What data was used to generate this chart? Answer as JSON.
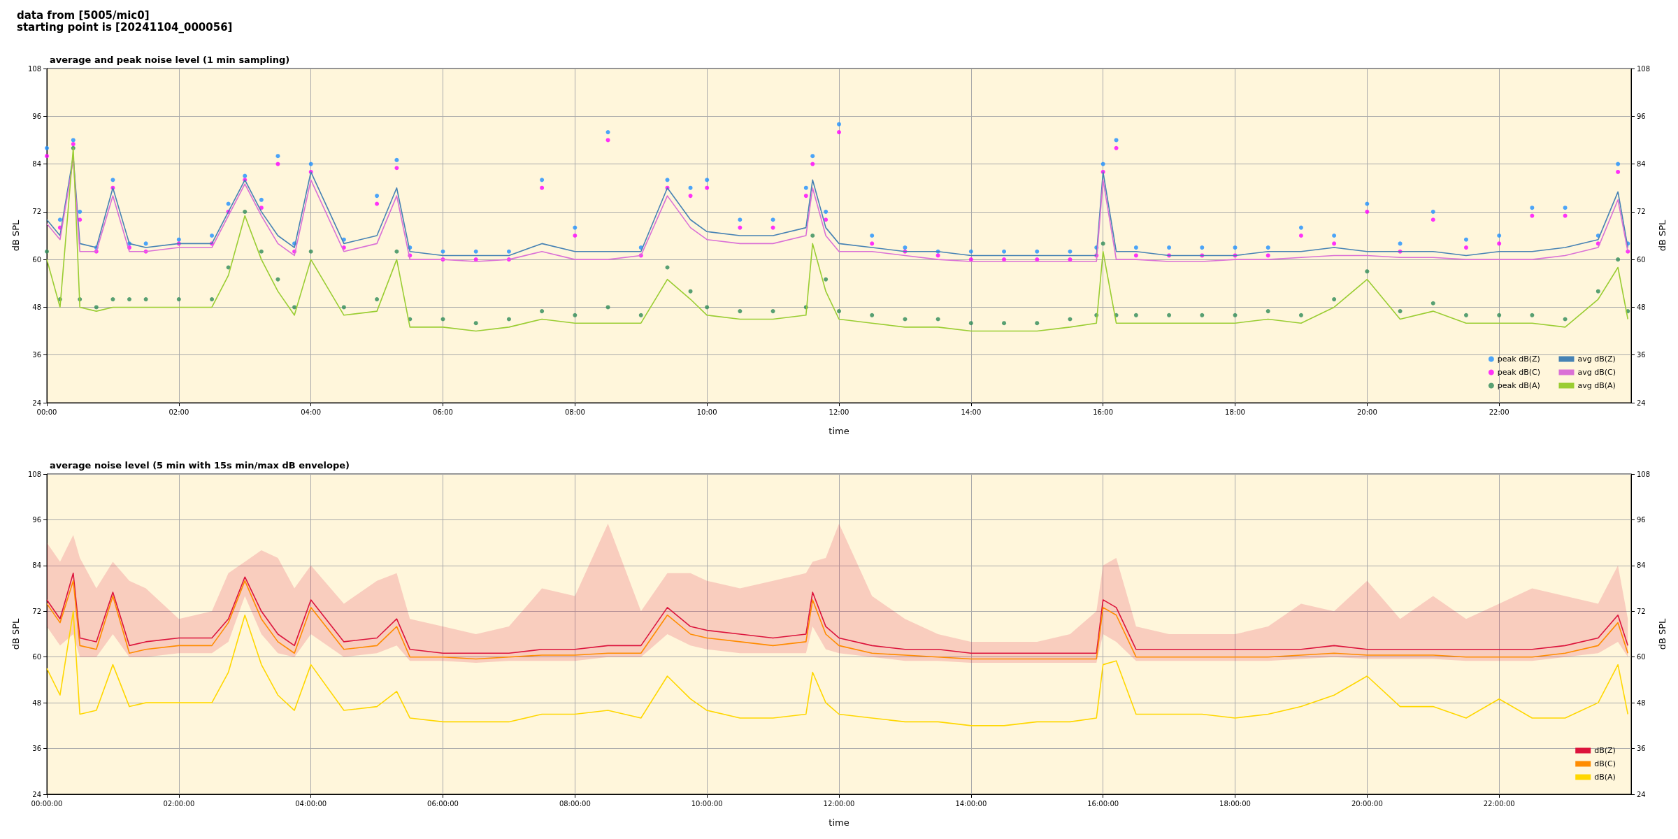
{
  "chart_data": [
    {
      "type": "line",
      "title": "average and peak noise level (1 min sampling)",
      "xlabel": "time",
      "ylabel": "dB SPL",
      "y2label": "dB SPL",
      "annotations": [
        "data from [5005/mic0]",
        "starting point is [20241104_000056]"
      ],
      "x": [
        0,
        0.2,
        0.4,
        0.5,
        0.75,
        1,
        1.25,
        1.5,
        2,
        2.5,
        2.75,
        3,
        3.25,
        3.5,
        3.75,
        4,
        4.5,
        5,
        5.3,
        5.5,
        6,
        6.5,
        7,
        7.5,
        8,
        8.5,
        9,
        9.4,
        9.75,
        10,
        10.5,
        11,
        11.5,
        11.6,
        11.8,
        12,
        12.5,
        13,
        13.5,
        14,
        14.5,
        15,
        15.5,
        15.9,
        16,
        16.2,
        16.5,
        17,
        17.5,
        18,
        18.5,
        19,
        19.5,
        20,
        20.5,
        21,
        21.5,
        22,
        22.5,
        23,
        23.5,
        23.8,
        23.95
      ],
      "xlim": [
        0,
        24
      ],
      "xticks": [
        {
          "value": 0,
          "label": "00:00"
        },
        {
          "value": 2,
          "label": "02:00"
        },
        {
          "value": 4,
          "label": "04:00"
        },
        {
          "value": 6,
          "label": "06:00"
        },
        {
          "value": 8,
          "label": "08:00"
        },
        {
          "value": 10,
          "label": "10:00"
        },
        {
          "value": 12,
          "label": "12:00"
        },
        {
          "value": 14,
          "label": "14:00"
        },
        {
          "value": 16,
          "label": "16:00"
        },
        {
          "value": 18,
          "label": "18:00"
        },
        {
          "value": 20,
          "label": "20:00"
        },
        {
          "value": 22,
          "label": "22:00"
        }
      ],
      "ylim": [
        24,
        108
      ],
      "yticks": [
        24,
        36,
        48,
        60,
        72,
        84,
        96,
        108
      ],
      "y2lim": [
        24,
        108
      ],
      "y2ticks": [
        24,
        36,
        48,
        60,
        72,
        84,
        96,
        108
      ],
      "grid": true,
      "legend": "bottom right",
      "series": [
        {
          "name": "peak dB(Z)",
          "type": "scatter",
          "marker": "circle",
          "color": "#1e90ff",
          "values": [
            88,
            70,
            90,
            72,
            63,
            80,
            64,
            64,
            65,
            66,
            74,
            81,
            75,
            86,
            64,
            84,
            65,
            76,
            85,
            63,
            62,
            62,
            62,
            80,
            68,
            92,
            63,
            80,
            78,
            80,
            70,
            70,
            78,
            86,
            72,
            94,
            66,
            63,
            62,
            62,
            62,
            62,
            62,
            63,
            84,
            90,
            63,
            63,
            63,
            63,
            63,
            68,
            66,
            74,
            64,
            72,
            65,
            66,
            73,
            73,
            66,
            84,
            64
          ]
        },
        {
          "name": "peak dB(C)",
          "type": "scatter",
          "marker": "circle",
          "color": "#ff00ff",
          "values": [
            86,
            68,
            89,
            70,
            62,
            78,
            63,
            62,
            64,
            64,
            72,
            80,
            73,
            84,
            62,
            82,
            63,
            74,
            83,
            61,
            60,
            60,
            60,
            78,
            66,
            90,
            61,
            78,
            76,
            78,
            68,
            68,
            76,
            84,
            70,
            92,
            64,
            62,
            61,
            60,
            60,
            60,
            60,
            61,
            82,
            88,
            61,
            61,
            61,
            61,
            61,
            66,
            64,
            72,
            62,
            70,
            63,
            64,
            71,
            71,
            64,
            82,
            62
          ]
        },
        {
          "name": "peak dB(A)",
          "type": "scatter",
          "marker": "circle",
          "color": "#2e8b57",
          "values": [
            62,
            50,
            88,
            50,
            48,
            50,
            50,
            50,
            50,
            50,
            58,
            72,
            62,
            55,
            48,
            62,
            48,
            50,
            62,
            45,
            45,
            44,
            45,
            47,
            46,
            48,
            46,
            58,
            52,
            48,
            47,
            47,
            48,
            66,
            55,
            47,
            46,
            45,
            45,
            44,
            44,
            44,
            45,
            46,
            64,
            46,
            46,
            46,
            46,
            46,
            47,
            46,
            50,
            57,
            47,
            49,
            46,
            46,
            46,
            45,
            52,
            60,
            47
          ]
        },
        {
          "name": "avg dB(Z)",
          "color": "#4682b4",
          "values": [
            70,
            66,
            86,
            64,
            63,
            78,
            64,
            63,
            64,
            64,
            72,
            80,
            72,
            66,
            63,
            82,
            64,
            66,
            78,
            62,
            61,
            61,
            61,
            64,
            62,
            62,
            62,
            78,
            70,
            67,
            66,
            66,
            68,
            80,
            68,
            64,
            63,
            62,
            62,
            61,
            61,
            61,
            61,
            61,
            82,
            62,
            62,
            61,
            61,
            61,
            62,
            62,
            63,
            62,
            62,
            62,
            61,
            62,
            62,
            63,
            65,
            77,
            63
          ]
        },
        {
          "name": "avg dB(C)",
          "color": "#da70d6",
          "values": [
            69,
            65,
            85,
            62,
            62,
            76,
            62,
            62,
            63,
            63,
            71,
            79,
            71,
            64,
            61,
            80,
            62,
            64,
            76,
            60,
            60,
            59.5,
            60,
            62,
            60,
            60,
            61,
            76,
            68,
            65,
            64,
            64,
            66,
            78,
            66,
            62,
            62,
            61,
            60,
            59.5,
            59.5,
            59.5,
            59.5,
            59.5,
            80,
            60,
            60,
            59.5,
            59.5,
            60,
            60,
            60.5,
            61,
            61,
            60.5,
            60.5,
            60,
            60,
            60,
            61,
            63,
            75,
            62
          ]
        },
        {
          "name": "avg dB(A)",
          "color": "#9acd32",
          "values": [
            60,
            48,
            88,
            48,
            47,
            48,
            48,
            48,
            48,
            48,
            56,
            71,
            60,
            52,
            46,
            60,
            46,
            47,
            60,
            43,
            43,
            42,
            43,
            45,
            44,
            44,
            44,
            55,
            50,
            46,
            45,
            45,
            46,
            64,
            52,
            45,
            44,
            43,
            43,
            42,
            42,
            42,
            43,
            44,
            62,
            44,
            44,
            44,
            44,
            44,
            45,
            44,
            48,
            55,
            45,
            47,
            44,
            44,
            44,
            43,
            50,
            58,
            45
          ]
        }
      ]
    },
    {
      "type": "line",
      "title": "average noise level (5 min with 15s min/max dB envelope)",
      "xlabel": "time",
      "ylabel": "dB SPL",
      "y2label": "dB SPL",
      "x": [
        0,
        0.2,
        0.4,
        0.5,
        0.75,
        1,
        1.25,
        1.5,
        2,
        2.5,
        2.75,
        3,
        3.25,
        3.5,
        3.75,
        4,
        4.5,
        5,
        5.3,
        5.5,
        6,
        6.5,
        7,
        7.5,
        8,
        8.5,
        9,
        9.4,
        9.75,
        10,
        10.5,
        11,
        11.5,
        11.6,
        11.8,
        12,
        12.5,
        13,
        13.5,
        14,
        14.5,
        15,
        15.5,
        15.9,
        16,
        16.2,
        16.5,
        17,
        17.5,
        18,
        18.5,
        19,
        19.5,
        20,
        20.5,
        21,
        21.5,
        22,
        22.5,
        23,
        23.5,
        23.8,
        23.95
      ],
      "xlim": [
        0,
        24
      ],
      "xticks": [
        {
          "value": 0,
          "label": "00:00:00"
        },
        {
          "value": 2,
          "label": "02:00:00"
        },
        {
          "value": 4,
          "label": "04:00:00"
        },
        {
          "value": 6,
          "label": "06:00:00"
        },
        {
          "value": 8,
          "label": "08:00:00"
        },
        {
          "value": 10,
          "label": "10:00:00"
        },
        {
          "value": 12,
          "label": "12:00:00"
        },
        {
          "value": 14,
          "label": "14:00:00"
        },
        {
          "value": 16,
          "label": "16:00:00"
        },
        {
          "value": 18,
          "label": "18:00:00"
        },
        {
          "value": 20,
          "label": "20:00:00"
        },
        {
          "value": 22,
          "label": "22:00:00"
        }
      ],
      "ylim": [
        24,
        108
      ],
      "yticks": [
        24,
        36,
        48,
        60,
        72,
        84,
        96,
        108
      ],
      "y2lim": [
        24,
        108
      ],
      "y2ticks": [
        24,
        36,
        48,
        60,
        72,
        84,
        96,
        108
      ],
      "grid": true,
      "legend": "bottom right",
      "series": [
        {
          "name": "dB(Z)",
          "color": "#dc143c",
          "values": [
            75,
            70,
            82,
            65,
            64,
            77,
            63,
            64,
            65,
            65,
            70,
            81,
            72,
            66,
            63,
            75,
            64,
            65,
            70,
            62,
            61,
            61,
            61,
            62,
            62,
            63,
            63,
            73,
            68,
            67,
            66,
            65,
            66,
            77,
            68,
            65,
            63,
            62,
            62,
            61,
            61,
            61,
            61,
            61,
            75,
            73,
            62,
            62,
            62,
            62,
            62,
            62,
            63,
            62,
            62,
            62,
            62,
            62,
            62,
            63,
            65,
            71,
            63
          ],
          "lower": [
            68,
            63,
            66,
            60,
            60,
            66,
            60,
            60,
            61,
            61,
            64,
            76,
            66,
            61,
            60,
            66,
            60,
            61,
            63,
            59,
            59,
            58.5,
            59,
            59,
            59,
            60,
            60,
            66,
            63,
            62,
            61,
            61,
            61,
            68,
            62,
            61,
            60,
            59,
            59,
            58.5,
            58.5,
            58.5,
            58.5,
            58.5,
            66,
            64,
            59,
            59,
            59,
            59,
            59,
            59.5,
            60,
            59.5,
            59.5,
            59.5,
            59,
            59,
            59,
            60,
            61,
            64,
            60
          ],
          "upper": [
            90,
            85,
            92,
            86,
            78,
            85,
            80,
            78,
            70,
            72,
            82,
            85,
            88,
            86,
            78,
            84,
            74,
            80,
            82,
            70,
            68,
            66,
            68,
            78,
            76,
            95,
            72,
            82,
            82,
            80,
            78,
            80,
            82,
            85,
            86,
            95,
            76,
            70,
            66,
            64,
            64,
            64,
            66,
            72,
            84,
            86,
            68,
            66,
            66,
            66,
            68,
            74,
            72,
            80,
            70,
            76,
            70,
            74,
            78,
            76,
            74,
            84,
            70
          ]
        },
        {
          "name": "dB(C)",
          "color": "#ff8c00",
          "values": [
            74,
            69,
            80,
            63,
            62,
            76,
            61,
            62,
            63,
            63,
            69,
            80,
            70,
            64,
            61,
            73,
            62,
            63,
            68,
            60,
            60,
            59.5,
            60,
            60.5,
            60.5,
            61,
            61,
            71,
            66,
            65,
            64,
            63,
            64,
            75,
            66,
            63,
            61,
            60.5,
            60,
            59.5,
            59.5,
            59.5,
            59.5,
            59.5,
            73,
            71,
            60,
            60,
            60,
            60,
            60,
            60.5,
            61,
            60.5,
            60.5,
            60.5,
            60,
            60,
            60,
            61,
            63,
            69,
            61
          ]
        },
        {
          "name": "dB(A)",
          "color": "#ffd700",
          "values": [
            57,
            50,
            72,
            45,
            46,
            58,
            47,
            48,
            48,
            48,
            56,
            71,
            58,
            50,
            46,
            58,
            46,
            47,
            51,
            44,
            43,
            43,
            43,
            45,
            45,
            46,
            44,
            55,
            49,
            46,
            44,
            44,
            45,
            56,
            48,
            45,
            44,
            43,
            43,
            42,
            42,
            43,
            43,
            44,
            58,
            59,
            45,
            45,
            45,
            44,
            45,
            47,
            50,
            55,
            47,
            47,
            44,
            49,
            44,
            44,
            48,
            58,
            45
          ]
        }
      ]
    }
  ]
}
